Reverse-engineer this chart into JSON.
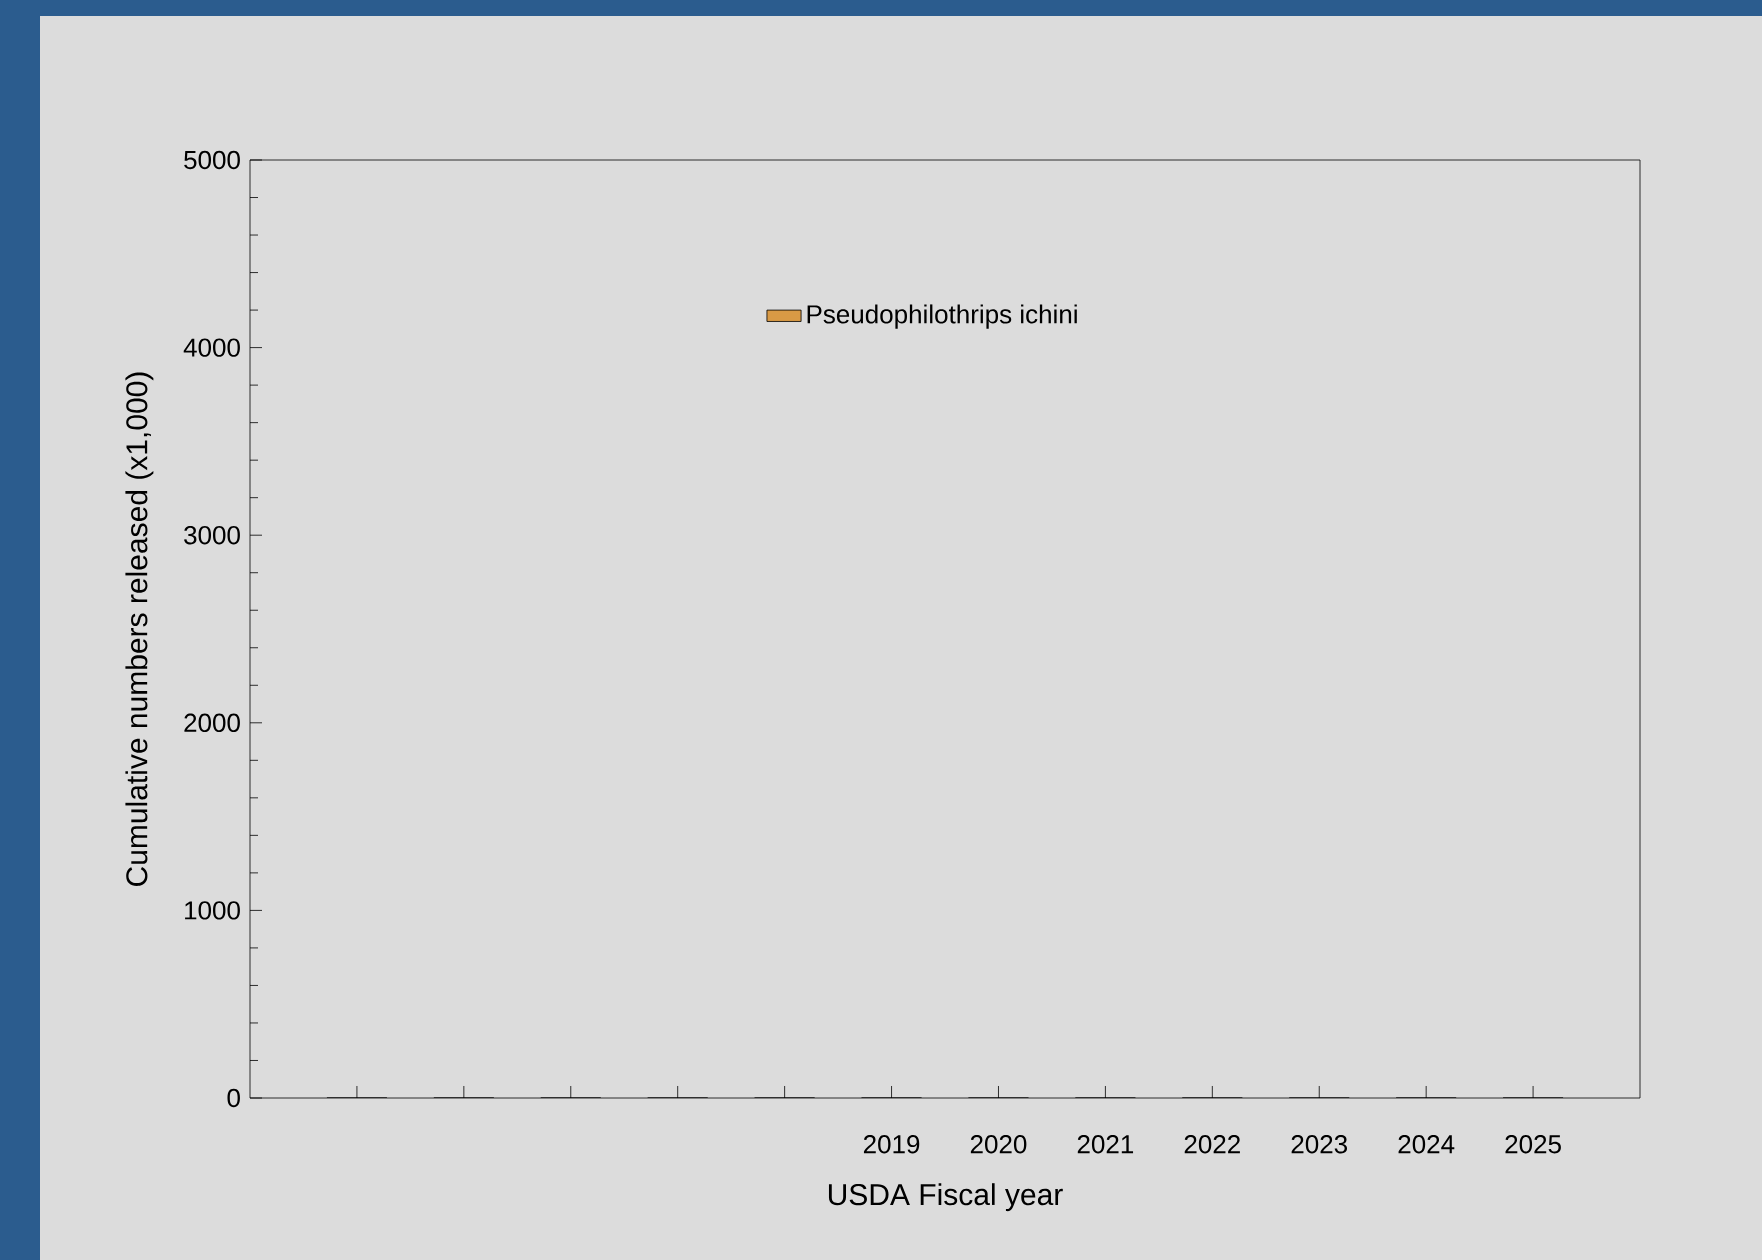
{
  "chart_data": {
    "type": "bar",
    "xlabel": "USDA Fiscal year",
    "ylabel": "Cumulative numbers released (x1,000)",
    "categories": [
      null,
      null,
      null,
      null,
      null,
      "2019",
      "2020",
      "2021",
      "2022",
      "2023",
      "2024",
      "2025"
    ],
    "series": [
      {
        "name": "Pseudophilothrips ichini",
        "color": "#d99a45",
        "values": [
          0,
          0,
          0,
          0,
          0,
          0,
          0,
          0,
          0,
          0,
          0,
          0
        ]
      }
    ],
    "ylim": [
      0,
      5000
    ],
    "yticks": [
      0,
      1000,
      2000,
      3000,
      4000,
      5000
    ],
    "grid": false,
    "legend": "top"
  }
}
